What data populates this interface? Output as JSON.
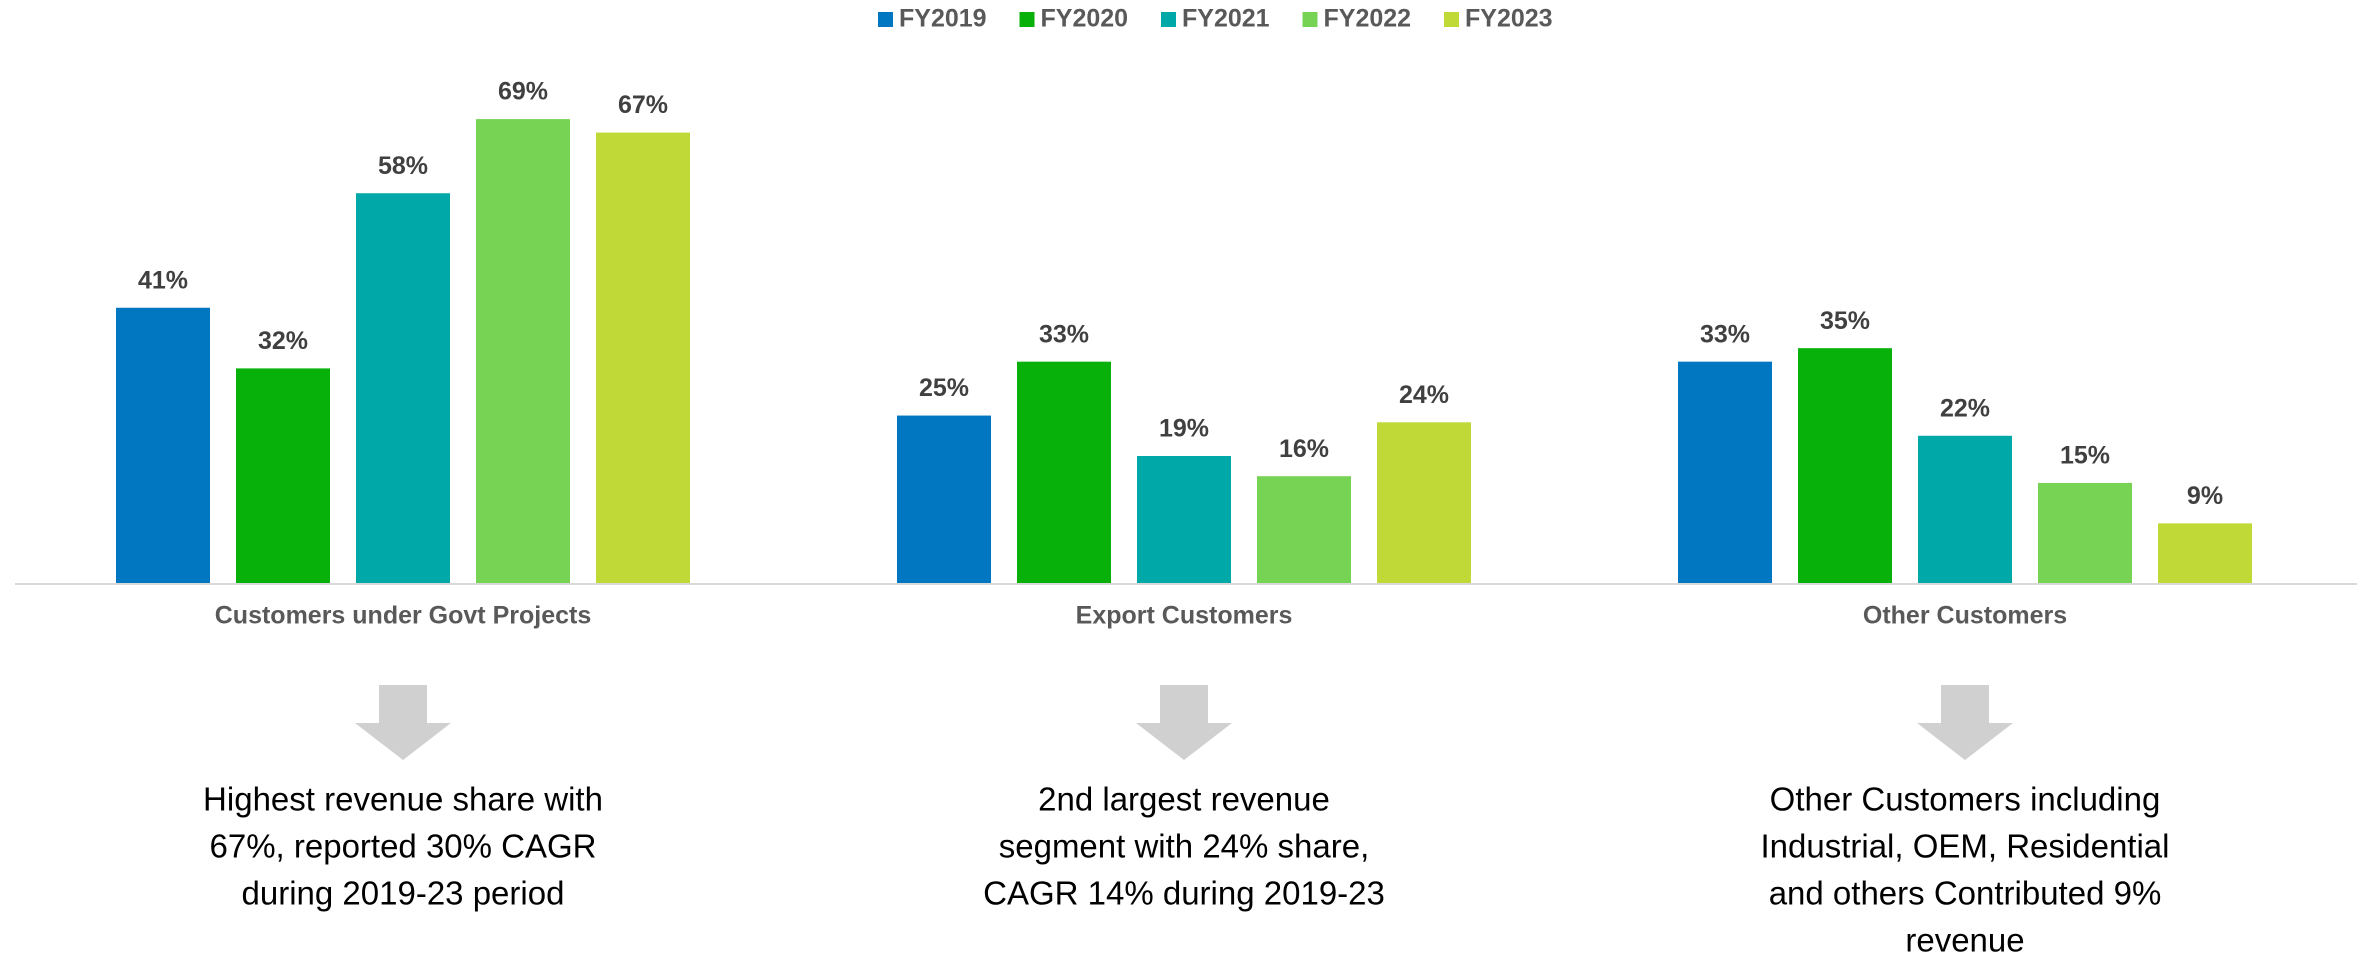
{
  "chart_data": {
    "type": "bar",
    "categories": [
      "Customers under Govt Projects",
      "Export Customers",
      "Other Customers"
    ],
    "series": [
      {
        "name": "FY2019",
        "color": "#0077c0",
        "values": [
          41,
          25,
          33
        ],
        "value_labels": [
          "41%",
          "25%",
          "33%"
        ]
      },
      {
        "name": "FY2020",
        "color": "#08b00a",
        "values": [
          32,
          33,
          35
        ],
        "value_labels": [
          "32%",
          "33%",
          "35%"
        ]
      },
      {
        "name": "FY2021",
        "color": "#00a8a8",
        "values": [
          58,
          19,
          22
        ],
        "value_labels": [
          "58%",
          "19%",
          "22%"
        ]
      },
      {
        "name": "FY2022",
        "color": "#77d353",
        "values": [
          69,
          16,
          15
        ],
        "value_labels": [
          "69%",
          "16%",
          "15%"
        ]
      },
      {
        "name": "FY2023",
        "color": "#c0d936",
        "values": [
          67,
          24,
          9
        ],
        "value_labels": [
          "67%",
          "24%",
          "9%"
        ]
      }
    ],
    "ylim": [
      0,
      80
    ],
    "legend": "top",
    "annotations": [
      [
        "Highest revenue share with",
        "67%, reported 30% CAGR",
        "during 2019-23 period"
      ],
      [
        "2nd largest revenue",
        "segment with 24% share,",
        "CAGR 14% during 2019-23"
      ],
      [
        "Other Customers including",
        "Industrial, OEM, Residential",
        "and others Contributed 9%",
        "revenue"
      ]
    ]
  }
}
